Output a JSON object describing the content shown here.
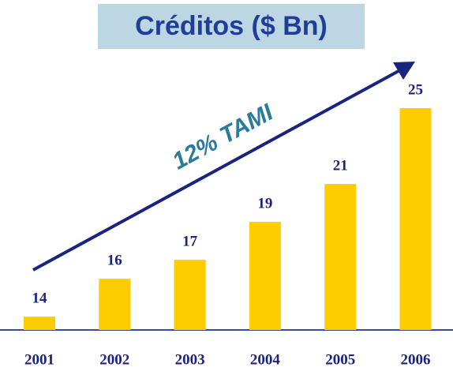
{
  "chart_data": {
    "type": "bar",
    "title": "Créditos ($ Bn)",
    "categories": [
      "2001",
      "2002",
      "2003",
      "2004",
      "2005",
      "2006"
    ],
    "values": [
      14,
      16,
      17,
      19,
      21,
      25
    ],
    "color": "#ffcc00",
    "ylim": [
      13.3,
      25
    ],
    "annotation": "12% TAMI"
  }
}
